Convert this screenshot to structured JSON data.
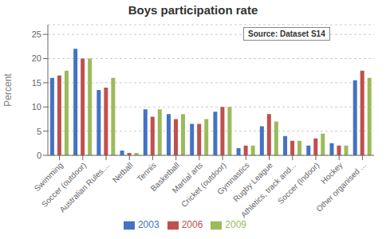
{
  "chart_data": {
    "type": "bar",
    "title": "Boys participation rate",
    "ylabel": "Percent",
    "categories": [
      "Swimming",
      "Soccer (outdoor)",
      "Australian Rules....",
      "Netball",
      "Tennis",
      "Basketball",
      "Martial arts",
      "Cricket (outdoor)",
      "Gymnastics",
      "Rugby League",
      "Athletics, track and...",
      "Soccer (Indoor)",
      "Hockey",
      "Other organised ..."
    ],
    "series": [
      {
        "name": "2003",
        "color": "#4472C4",
        "values": [
          16.0,
          22.0,
          13.5,
          1.0,
          9.5,
          8.5,
          6.5,
          9.0,
          1.5,
          6.0,
          4.0,
          2.0,
          2.5,
          15.5
        ]
      },
      {
        "name": "2006",
        "color": "#C0504D",
        "values": [
          16.5,
          20.0,
          14.0,
          0.5,
          8.0,
          7.5,
          6.5,
          10.0,
          2.0,
          8.5,
          3.0,
          3.5,
          2.0,
          17.5
        ]
      },
      {
        "name": "2009",
        "color": "#9BBB59",
        "values": [
          17.5,
          20.0,
          16.0,
          0.5,
          9.5,
          8.5,
          7.5,
          10.0,
          2.0,
          7.0,
          3.0,
          4.5,
          2.0,
          16.0
        ]
      }
    ],
    "ylim": [
      0,
      27
    ],
    "yticks": [
      0,
      5,
      10,
      15,
      20,
      25
    ],
    "grid": true,
    "legend": "bottom",
    "annotation": "Source: Dataset S14"
  }
}
